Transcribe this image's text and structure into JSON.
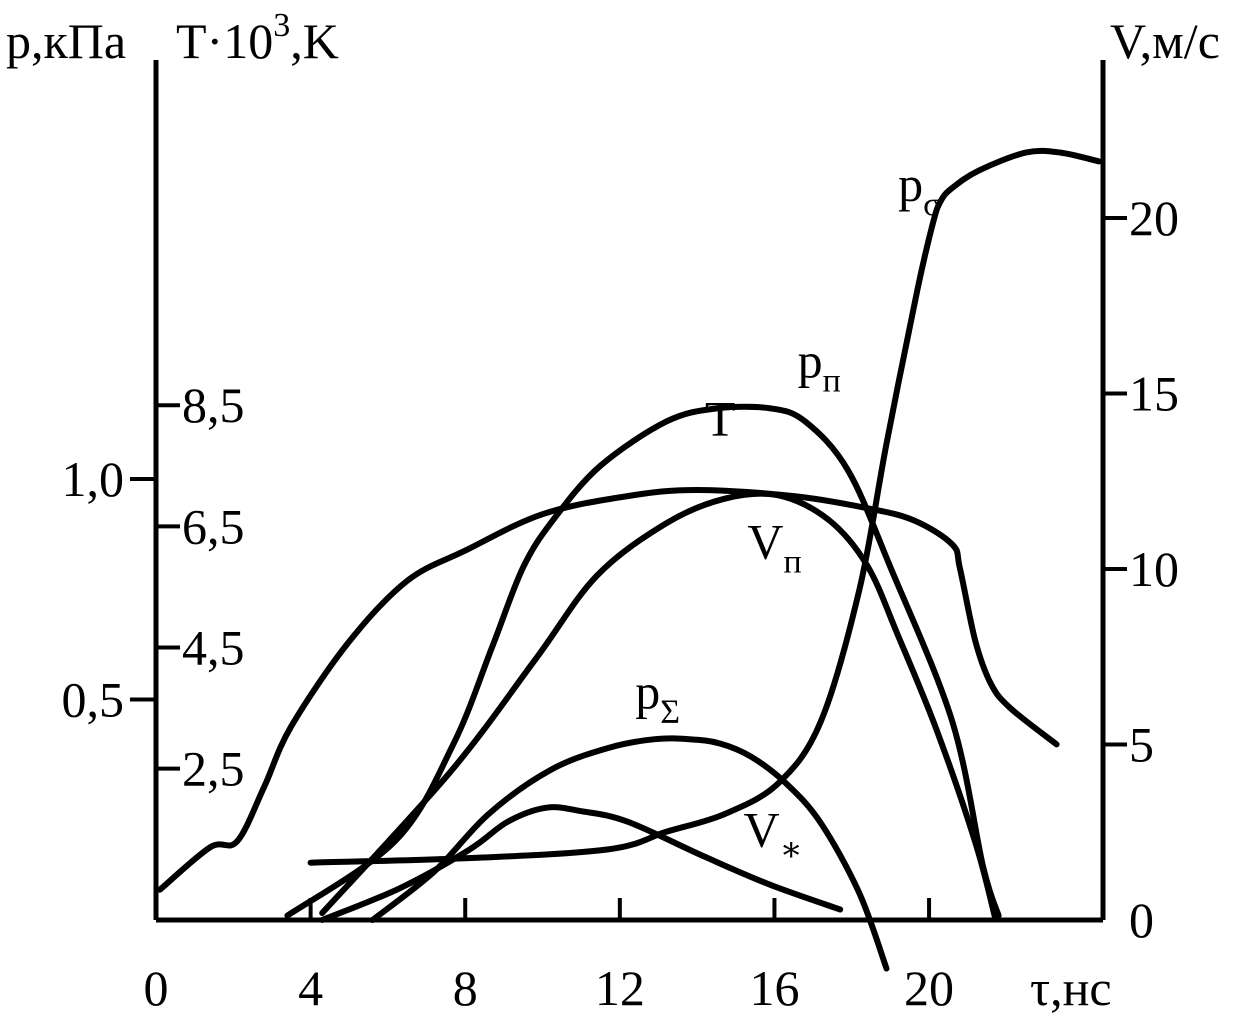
{
  "chart_data": {
    "type": "line",
    "axes": {
      "x": {
        "title": "τ,нс",
        "ticks": [
          "0",
          "4",
          "8",
          "12",
          "16",
          "20"
        ],
        "tick_values": [
          0,
          4,
          8,
          12,
          16,
          20
        ],
        "range": [
          0,
          24.5
        ]
      },
      "y_left_p": {
        "title_main": "p",
        "title_unit": ",кПа",
        "ticks": [
          "0,5",
          "1,0"
        ],
        "tick_values": [
          0.5,
          1.0
        ],
        "range": [
          0,
          1.95
        ]
      },
      "y_left_T": {
        "title_main": "T·10",
        "title_sup": "3",
        "title_unit": ",K",
        "ticks": [
          "2,5",
          "4,5",
          "6,5",
          "8,5"
        ],
        "tick_values": [
          2.5,
          4.5,
          6.5,
          8.5
        ],
        "range": [
          0,
          14.2
        ]
      },
      "y_right_V": {
        "title": "V,м/с",
        "ticks": [
          "0",
          "5",
          "10",
          "15",
          "20"
        ],
        "tick_values": [
          0,
          5,
          10,
          15,
          20
        ],
        "range": [
          0,
          24.5
        ]
      }
    },
    "series": [
      {
        "name": "p",
        "sub": "п",
        "axis": "y_left_p",
        "label_at": [
          16.6,
          1.23
        ],
        "x": [
          3.4,
          6.2,
          7.7,
          8.7,
          9.5,
          10.3,
          11.5,
          13.2,
          14.5,
          15.9,
          16.8,
          17.9,
          19.0,
          20.6,
          21.4,
          21.8
        ],
        "y": [
          0.01,
          0.18,
          0.4,
          0.62,
          0.8,
          0.91,
          1.03,
          1.13,
          1.16,
          1.16,
          1.13,
          1.02,
          0.8,
          0.45,
          0.12,
          0.01
        ]
      },
      {
        "name": "T",
        "axis": "y_left_T",
        "label_at": [
          14.2,
          8.0
        ],
        "x": [
          0.1,
          1.4,
          2.1,
          2.8,
          3.5,
          5.0,
          6.5,
          8.0,
          10.0,
          12.2,
          14.0,
          16.5,
          18.4,
          19.6,
          20.6,
          20.8,
          21.2,
          21.6,
          22.1,
          23.3
        ],
        "y": [
          0.5,
          1.2,
          1.3,
          2.2,
          3.2,
          4.6,
          5.6,
          6.1,
          6.7,
          7.0,
          7.1,
          7.0,
          6.8,
          6.6,
          6.2,
          5.8,
          4.6,
          3.9,
          3.5,
          2.9
        ]
      },
      {
        "name": "V",
        "sub": "п",
        "axis": "y_right_V",
        "label_at": [
          15.3,
          10.3
        ],
        "x": [
          4.3,
          7.6,
          9.8,
          11.4,
          13.2,
          14.7,
          16.1,
          17.4,
          18.4,
          19.2,
          20.2,
          21.2,
          21.7
        ],
        "y": [
          0.2,
          4.2,
          7.4,
          9.8,
          11.3,
          12.0,
          12.1,
          11.4,
          10.1,
          8.1,
          5.4,
          2.2,
          0.1
        ]
      },
      {
        "name": "p",
        "sub": "Σ",
        "axis": "y_left_p",
        "label_at": [
          12.4,
          0.48
        ],
        "x": [
          5.6,
          7.2,
          8.6,
          10.2,
          11.7,
          12.9,
          13.8,
          14.6,
          15.4,
          16.3,
          17.2,
          18.2,
          18.9
        ],
        "y": [
          0.0,
          0.11,
          0.24,
          0.34,
          0.39,
          0.41,
          0.41,
          0.4,
          0.37,
          0.31,
          0.22,
          0.06,
          -0.11
        ]
      },
      {
        "name": "V",
        "sub": "∗",
        "axis": "y_right_V",
        "label_at": [
          15.2,
          2.1
        ],
        "x": [
          4.3,
          6.3,
          8.1,
          9.1,
          10.1,
          11.0,
          12.2,
          14.2,
          15.9,
          17.7
        ],
        "y": [
          0.0,
          0.9,
          2.0,
          2.8,
          3.2,
          3.1,
          2.8,
          1.8,
          1.0,
          0.3
        ]
      },
      {
        "name": "p",
        "sub": "σ",
        "axis": "y_left_p",
        "label_at": [
          19.2,
          1.63
        ],
        "x": [
          4.0,
          8.0,
          11.7,
          13.2,
          14.7,
          16.1,
          17.2,
          18.2,
          18.9,
          19.7,
          20.1,
          20.3,
          20.6,
          21.3,
          22.5,
          23.4,
          24.4
        ],
        "y": [
          0.13,
          0.14,
          0.16,
          0.2,
          0.24,
          0.31,
          0.45,
          0.75,
          1.08,
          1.43,
          1.58,
          1.63,
          1.66,
          1.7,
          1.74,
          1.74,
          1.72
        ]
      }
    ]
  }
}
